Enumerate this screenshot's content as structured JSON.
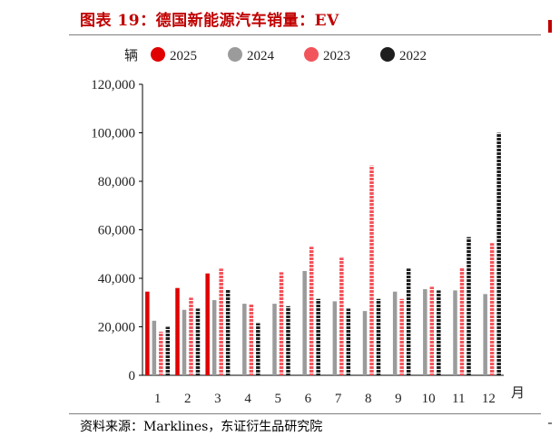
{
  "header": {
    "title": "图表 19：德国新能源汽车销量：EV",
    "source": "资料来源：Marklines，东证衍生品研究院"
  },
  "colors": {
    "title": "#c00000",
    "2025": "#e00000",
    "2024": "#9b9b9b",
    "2023": "#f2545b",
    "2022": "#1e1e1e"
  },
  "chart_data": {
    "type": "bar",
    "ylabel": "辆",
    "xlabel": "月",
    "ylim": [
      0,
      120000
    ],
    "yticks": [
      0,
      20000,
      40000,
      60000,
      80000,
      100000,
      120000
    ],
    "ytick_labels": [
      "0",
      "20,000",
      "40,000",
      "60,000",
      "80,000",
      "100,000",
      "120,000"
    ],
    "categories": [
      "1",
      "2",
      "3",
      "4",
      "5",
      "6",
      "7",
      "8",
      "9",
      "10",
      "11",
      "12"
    ],
    "legend_position": "top",
    "series": [
      {
        "name": "2025",
        "color": "#e00000",
        "pattern": "solid",
        "values": [
          34500,
          36000,
          42000,
          null,
          null,
          null,
          null,
          null,
          null,
          null,
          null,
          null
        ]
      },
      {
        "name": "2024",
        "color": "#9b9b9b",
        "pattern": "solid",
        "values": [
          22500,
          27000,
          31000,
          29500,
          29500,
          43000,
          30500,
          26500,
          34500,
          35500,
          35000,
          33500
        ]
      },
      {
        "name": "2023",
        "color": "#f2545b",
        "pattern": "dashed",
        "values": [
          18000,
          32000,
          44000,
          29500,
          42500,
          53000,
          48500,
          86500,
          31500,
          36500,
          44500,
          54500
        ]
      },
      {
        "name": "2022",
        "color": "#1e1e1e",
        "pattern": "dashed",
        "values": [
          20000,
          27500,
          35500,
          21500,
          28500,
          31500,
          27500,
          31500,
          44000,
          35000,
          57000,
          100000
        ]
      }
    ]
  }
}
